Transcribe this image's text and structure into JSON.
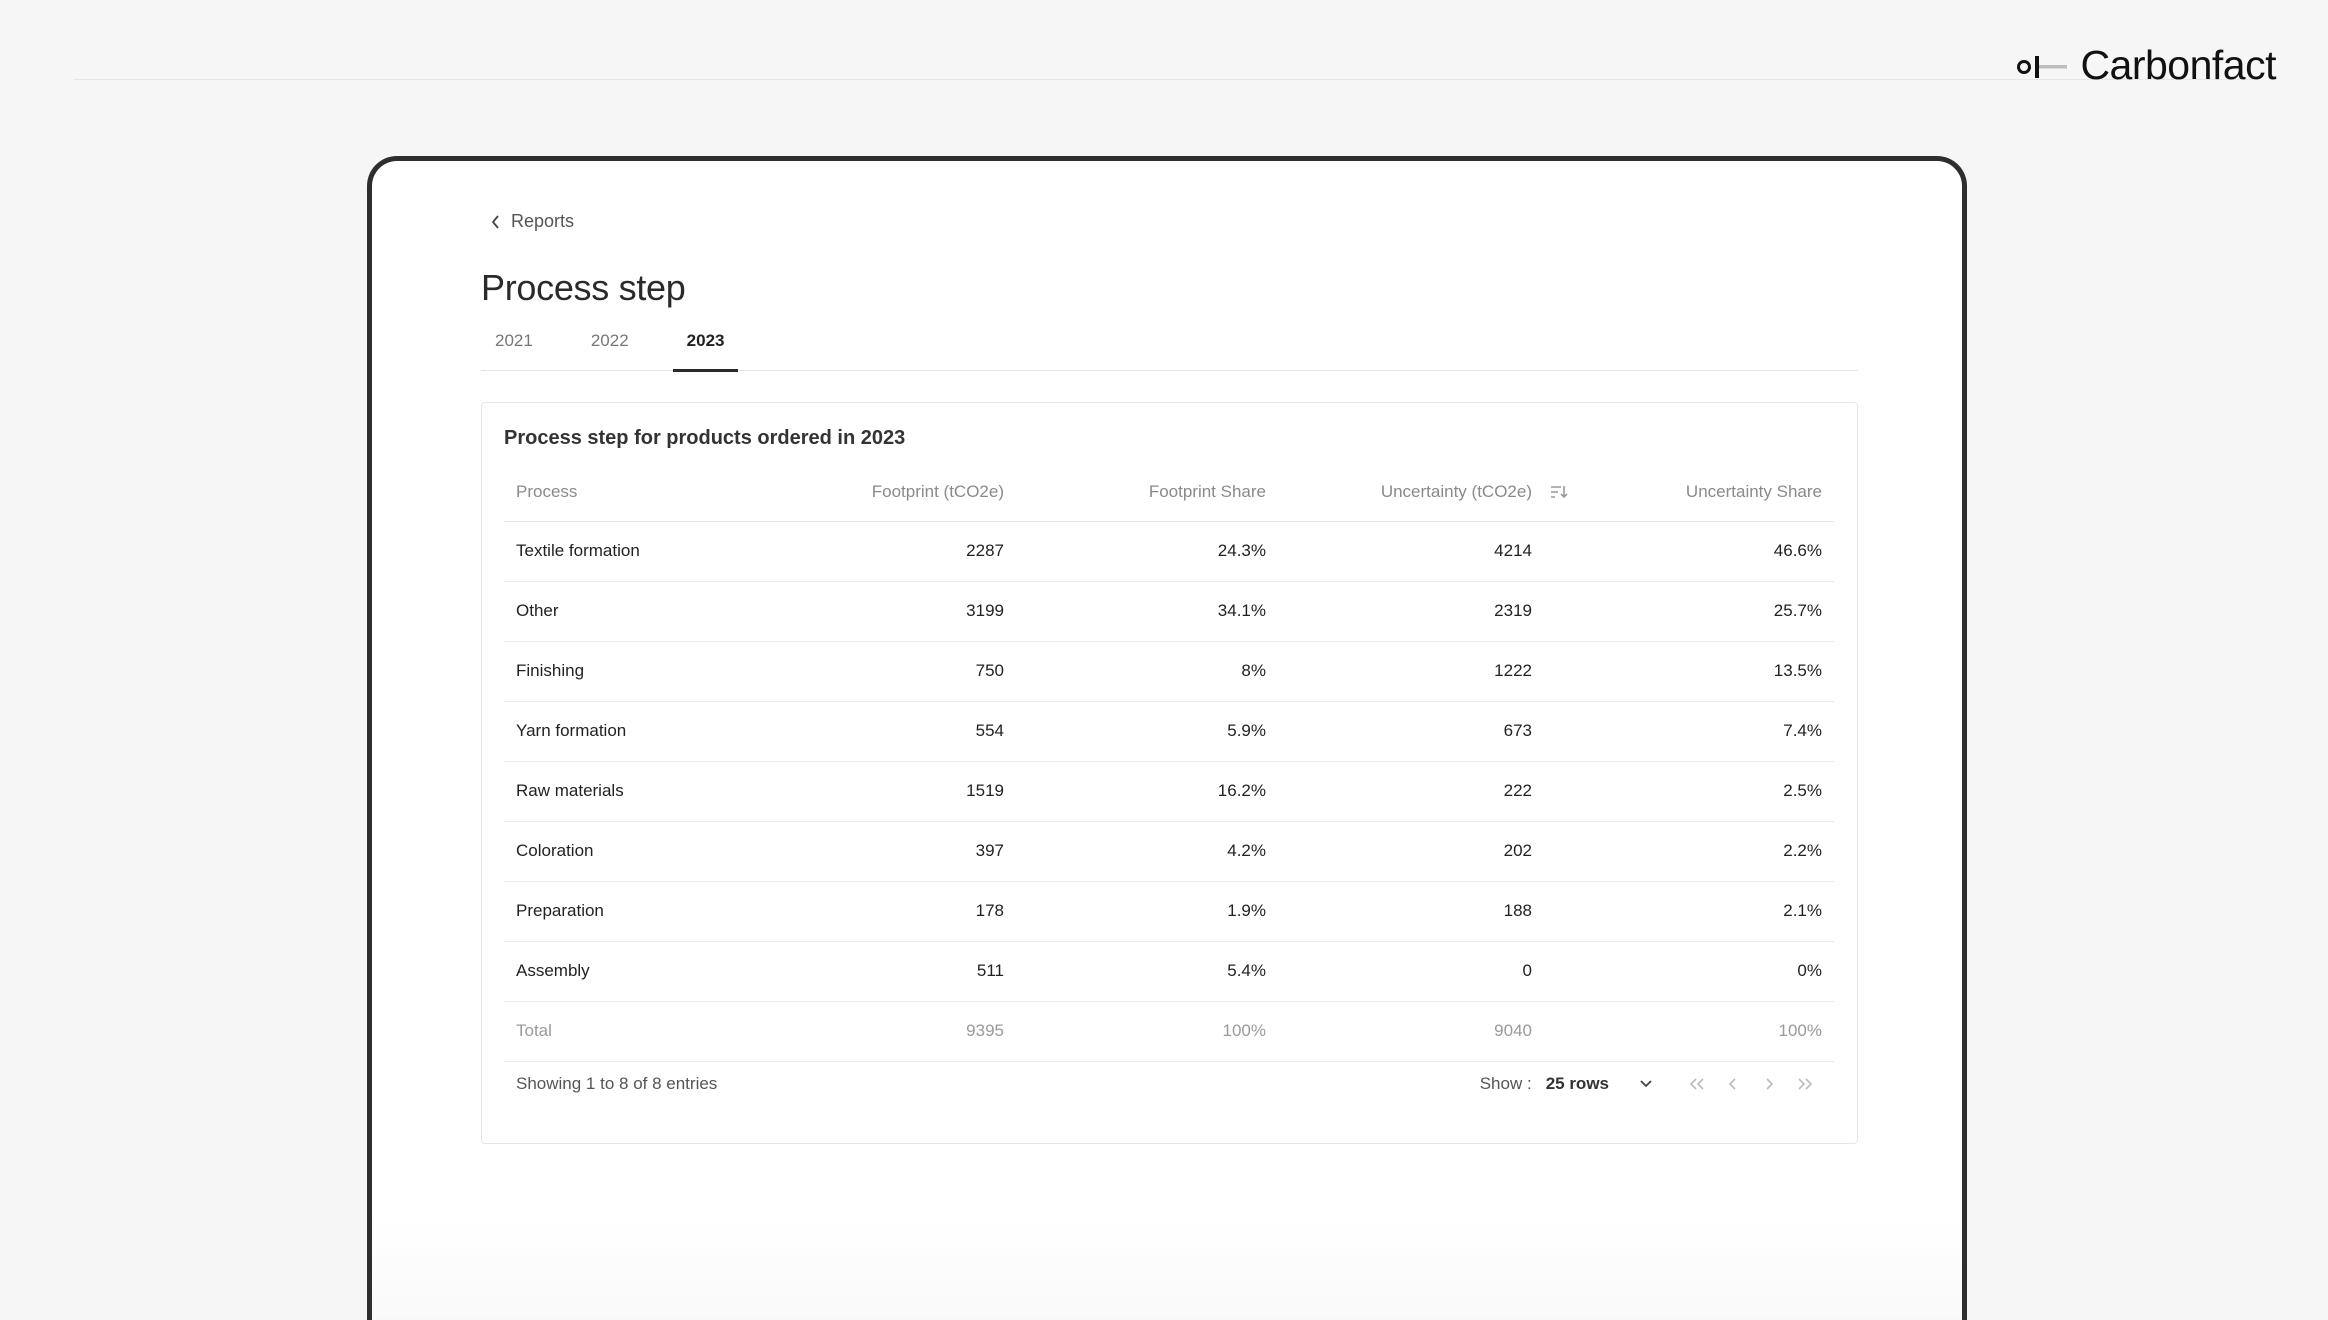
{
  "brand": {
    "name": "Carbonfact",
    "logo_icon": "carbonfact-logo-icon"
  },
  "nav": {
    "back_label": "Reports",
    "back_icon": "chevron-left-icon"
  },
  "page": {
    "title": "Process step"
  },
  "tabs": [
    {
      "label": "2021",
      "active": false
    },
    {
      "label": "2022",
      "active": false
    },
    {
      "label": "2023",
      "active": true
    }
  ],
  "card": {
    "title": "Process step for products ordered in 2023"
  },
  "table": {
    "headers": {
      "process": "Process",
      "footprint": "Footprint (tCO2e)",
      "footprint_share": "Footprint Share",
      "uncertainty": "Uncertainty (tCO2e)",
      "uncertainty_share": "Uncertainty Share",
      "sort_icon": "sort-descending-icon"
    },
    "rows": [
      {
        "process": "Textile formation",
        "footprint": "2287",
        "footprint_share": "24.3%",
        "uncertainty": "4214",
        "uncertainty_share": "46.6%"
      },
      {
        "process": "Other",
        "footprint": "3199",
        "footprint_share": "34.1%",
        "uncertainty": "2319",
        "uncertainty_share": "25.7%"
      },
      {
        "process": "Finishing",
        "footprint": "750",
        "footprint_share": "8%",
        "uncertainty": "1222",
        "uncertainty_share": "13.5%"
      },
      {
        "process": "Yarn formation",
        "footprint": "554",
        "footprint_share": "5.9%",
        "uncertainty": "673",
        "uncertainty_share": "7.4%"
      },
      {
        "process": "Raw materials",
        "footprint": "1519",
        "footprint_share": "16.2%",
        "uncertainty": "222",
        "uncertainty_share": "2.5%"
      },
      {
        "process": "Coloration",
        "footprint": "397",
        "footprint_share": "4.2%",
        "uncertainty": "202",
        "uncertainty_share": "2.2%"
      },
      {
        "process": "Preparation",
        "footprint": "178",
        "footprint_share": "1.9%",
        "uncertainty": "188",
        "uncertainty_share": "2.1%"
      },
      {
        "process": "Assembly",
        "footprint": "511",
        "footprint_share": "5.4%",
        "uncertainty": "0",
        "uncertainty_share": "0%"
      }
    ],
    "total": {
      "process": "Total",
      "footprint": "9395",
      "footprint_share": "100%",
      "uncertainty": "9040",
      "uncertainty_share": "100%"
    }
  },
  "footer": {
    "entries_text": "Showing 1 to 8 of 8 entries",
    "show_label": "Show :",
    "rows_value": "25 rows",
    "pager_icons": [
      "first-page-icon",
      "previous-page-icon",
      "next-page-icon",
      "last-page-icon"
    ]
  }
}
